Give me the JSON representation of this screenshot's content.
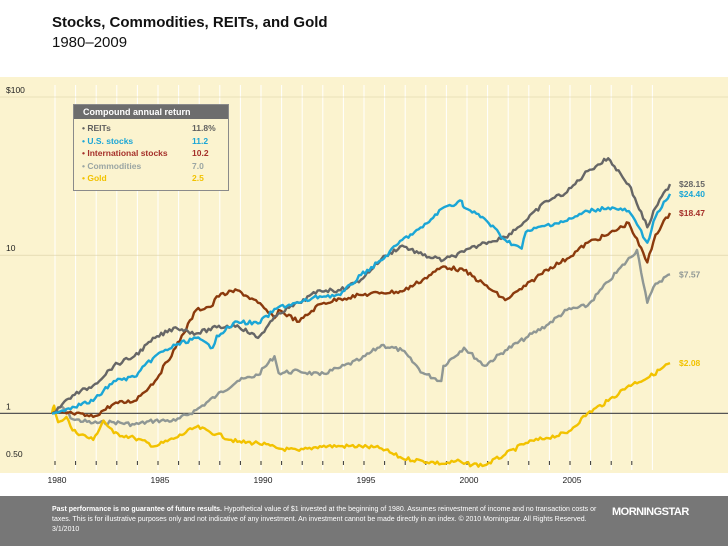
{
  "header": {
    "title": "Stocks, Commodities, REITs, and Gold",
    "subtitle": "1980–2009"
  },
  "legend": {
    "title": "Compound annual return",
    "items": [
      {
        "label": "• REITs",
        "value": "11.8%",
        "color": "#606060"
      },
      {
        "label": "• U.S. stocks",
        "value": "11.2",
        "color": "#1ba6d6"
      },
      {
        "label": "• International stocks",
        "value": "10.2",
        "color": "#a5302a"
      },
      {
        "label": "• Commodities",
        "value": "7.0",
        "color": "#9aa5a3"
      },
      {
        "label": "• Gold",
        "value": "2.5",
        "color": "#f2c200"
      }
    ]
  },
  "chart_data": {
    "type": "line",
    "title": "Stocks, Commodities, REITs, and Gold 1980–2009",
    "yscale": "log",
    "ylim": [
      0.5,
      100
    ],
    "xlim": [
      1980,
      2010
    ],
    "y_ticks": [
      {
        "value": 100,
        "label": "$100"
      },
      {
        "value": 10,
        "label": "10"
      },
      {
        "value": 1,
        "label": "1"
      },
      {
        "value": 0.5,
        "label": "0.50"
      }
    ],
    "x_ticks": [
      {
        "value": 1980,
        "label": "1980"
      },
      {
        "value": 1985,
        "label": "1985"
      },
      {
        "value": 1990,
        "label": "1990"
      },
      {
        "value": 1995,
        "label": "1995"
      },
      {
        "value": 2000,
        "label": "2000"
      },
      {
        "value": 2005,
        "label": "2005"
      }
    ],
    "series": [
      {
        "name": "Commodities",
        "color": "#8f9794",
        "end_label": "$7.57",
        "x": [
          1980,
          1980.5,
          1981,
          1982,
          1983,
          1984,
          1985,
          1986,
          1987,
          1988,
          1989,
          1990,
          1990.8,
          1991,
          1992,
          1993,
          1994,
          1995,
          1996,
          1997,
          1998,
          1998.9,
          1999,
          2000,
          2001,
          2002,
          2003,
          2004,
          2005,
          2006,
          2007,
          2008.4,
          2008.9,
          2009.3,
          2010
        ],
        "y": [
          1.0,
          1.1,
          0.92,
          0.87,
          0.88,
          0.85,
          0.9,
          0.9,
          1.05,
          1.3,
          1.6,
          1.75,
          2.3,
          1.8,
          1.85,
          1.75,
          1.95,
          2.2,
          2.7,
          2.5,
          1.8,
          1.6,
          2.0,
          2.6,
          2.0,
          2.5,
          3.0,
          3.6,
          4.5,
          4.8,
          6.8,
          10.8,
          5.0,
          6.6,
          7.57
        ]
      },
      {
        "name": "Gold",
        "color": "#f2c200",
        "end_label": "$2.08",
        "x": [
          1980,
          1980.1,
          1980.3,
          1980.7,
          1981,
          1982,
          1982.5,
          1983,
          1984,
          1985,
          1986,
          1987,
          1988,
          1989,
          1990,
          1991,
          1992,
          1993,
          1994,
          1995,
          1996,
          1997,
          1998,
          1999,
          1999.8,
          2000,
          2001,
          2002,
          2003,
          2004,
          2005,
          2006,
          2007,
          2008,
          2009,
          2010
        ],
        "y": [
          1.0,
          1.12,
          0.88,
          0.95,
          0.78,
          0.68,
          0.9,
          0.75,
          0.7,
          0.62,
          0.7,
          0.82,
          0.74,
          0.66,
          0.65,
          0.6,
          0.58,
          0.62,
          0.62,
          0.62,
          0.6,
          0.52,
          0.5,
          0.48,
          0.5,
          0.48,
          0.47,
          0.55,
          0.65,
          0.7,
          0.75,
          1.0,
          1.2,
          1.5,
          1.7,
          2.08
        ]
      },
      {
        "name": "International stocks",
        "color": "#8b3a0d",
        "end_label": "$18.47",
        "x": [
          1980,
          1981,
          1982,
          1983,
          1984,
          1985,
          1986,
          1987,
          1987.8,
          1988,
          1989,
          1990,
          1990.8,
          1991,
          1992,
          1993,
          1994,
          1995,
          1996,
          1997,
          1998,
          1999,
          2000,
          2001,
          2002,
          2003,
          2004,
          2005,
          2006,
          2007,
          2008,
          2008.9,
          2009.3,
          2010
        ],
        "y": [
          1.0,
          1.0,
          0.95,
          1.15,
          1.2,
          1.6,
          2.6,
          4.5,
          4.8,
          5.5,
          6.0,
          5.0,
          4.0,
          4.5,
          3.8,
          4.9,
          5.3,
          5.6,
          5.8,
          5.9,
          7.0,
          8.5,
          8.0,
          6.5,
          5.2,
          6.4,
          8.1,
          9.5,
          12.0,
          13.5,
          16.0,
          9.0,
          13.5,
          18.47
        ]
      },
      {
        "name": "REITs",
        "color": "#666666",
        "end_label": "$28.15",
        "x": [
          1980,
          1981,
          1982,
          1983,
          1984,
          1985,
          1986,
          1987,
          1988,
          1989,
          1990,
          1991,
          1992,
          1993,
          1994,
          1995,
          1996,
          1997,
          1998,
          1999,
          2000,
          2001,
          2002,
          2003,
          2004,
          2005,
          2006,
          2007,
          2008,
          2008.9,
          2009.3,
          2010
        ],
        "y": [
          1.0,
          1.3,
          1.5,
          2.0,
          2.3,
          3.0,
          3.5,
          3.2,
          3.5,
          3.6,
          3.0,
          4.3,
          5.0,
          6.0,
          6.0,
          7.0,
          9.5,
          11.5,
          10.0,
          9.3,
          10.5,
          12.0,
          13.0,
          16.5,
          22.0,
          25.0,
          34.0,
          41.0,
          28.0,
          15.0,
          20.0,
          28.15
        ]
      },
      {
        "name": "U.S. stocks",
        "color": "#1ba6d6",
        "end_label": "$24.40",
        "x": [
          1980,
          1981,
          1982,
          1983,
          1984,
          1985,
          1986,
          1987,
          1987.8,
          1988,
          1989,
          1990,
          1991,
          1992,
          1993,
          1994,
          1995,
          1996,
          1997,
          1998,
          1999,
          1999.9,
          2000,
          2001,
          2002,
          2002.8,
          2003,
          2004,
          2005,
          2006,
          2007,
          2008,
          2008.9,
          2009.3,
          2010
        ],
        "y": [
          1.0,
          1.1,
          1.2,
          1.6,
          1.7,
          2.3,
          2.7,
          3.0,
          2.6,
          3.1,
          3.8,
          3.7,
          4.7,
          5.0,
          5.5,
          5.6,
          7.5,
          9.3,
          12.5,
          15.0,
          20.0,
          22.0,
          20.0,
          17.0,
          12.5,
          11.0,
          14.0,
          15.5,
          16.5,
          19.0,
          20.0,
          19.0,
          12.0,
          17.5,
          24.4
        ]
      }
    ]
  },
  "footer": {
    "note_bold": "Past performance is no guarantee of future results.",
    "note_text": " Hypothetical value of $1 invested at the beginning of 1980. Assumes reinvestment of income and no transaction costs or taxes. This is for illustrative purposes only and not indicative of any investment. An investment cannot be made directly in an index. © 2010 Morningstar. All Rights Reserved. 3/1/2010",
    "logo": "MORNINGSTAR"
  }
}
